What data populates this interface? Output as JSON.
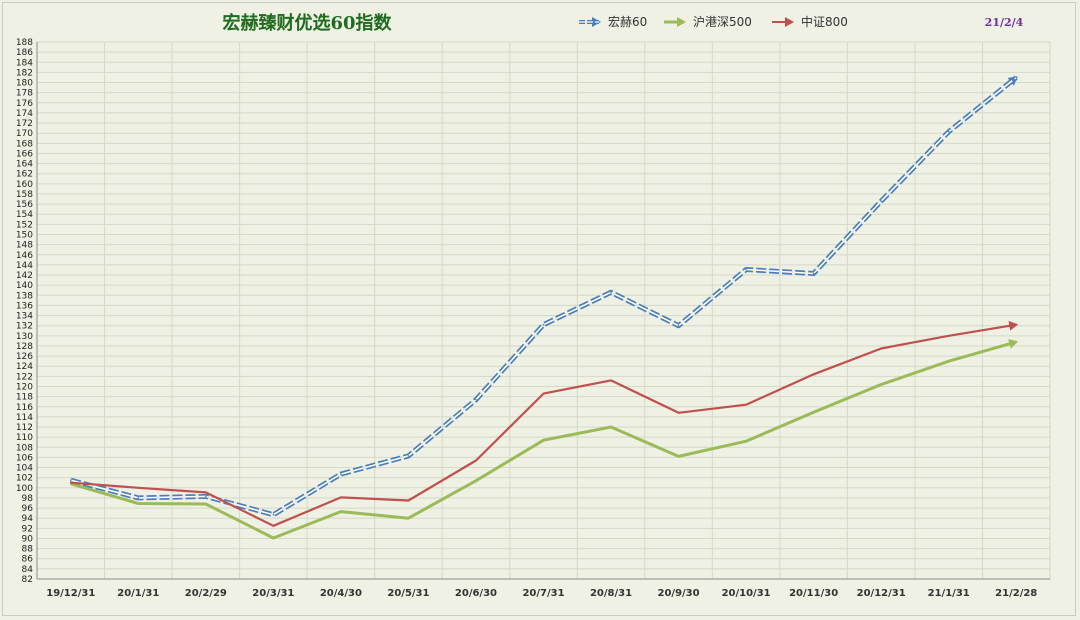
{
  "chart_data": {
    "type": "line",
    "title": "宏赫臻财优选60指数",
    "date_label": "21/2/4",
    "categories": [
      "19/12/31",
      "20/1/31",
      "20/2/29",
      "20/3/31",
      "20/4/30",
      "20/5/31",
      "20/6/30",
      "20/7/31",
      "20/8/31",
      "20/9/30",
      "20/10/31",
      "20/11/30",
      "20/12/31",
      "21/1/31",
      "21/2/28"
    ],
    "ylim": [
      82,
      188
    ],
    "ytick_step": 2,
    "grid": true,
    "legend_position": "top-center",
    "series": [
      {
        "name": "宏赫60",
        "color": "#4a7ebb",
        "style": "double-dashed",
        "values": [
          101.5,
          98.0,
          98.3,
          94.7,
          102.7,
          106.3,
          117.4,
          132.2,
          138.6,
          132.0,
          143.1,
          142.3,
          156.6,
          170.3,
          181.0
        ]
      },
      {
        "name": "沪港深500",
        "color": "#9bbb59",
        "style": "solid-thick",
        "values": [
          100.8,
          96.9,
          96.8,
          90.1,
          95.3,
          94.0,
          101.4,
          109.4,
          112.0,
          106.2,
          109.2,
          114.9,
          120.4,
          125.0,
          128.8
        ]
      },
      {
        "name": "中证800",
        "color": "#c0504d",
        "style": "solid",
        "values": [
          101.0,
          100.0,
          99.1,
          92.5,
          98.1,
          97.5,
          105.4,
          118.6,
          121.2,
          114.8,
          116.4,
          122.4,
          127.5,
          130.0,
          132.2
        ]
      }
    ]
  }
}
